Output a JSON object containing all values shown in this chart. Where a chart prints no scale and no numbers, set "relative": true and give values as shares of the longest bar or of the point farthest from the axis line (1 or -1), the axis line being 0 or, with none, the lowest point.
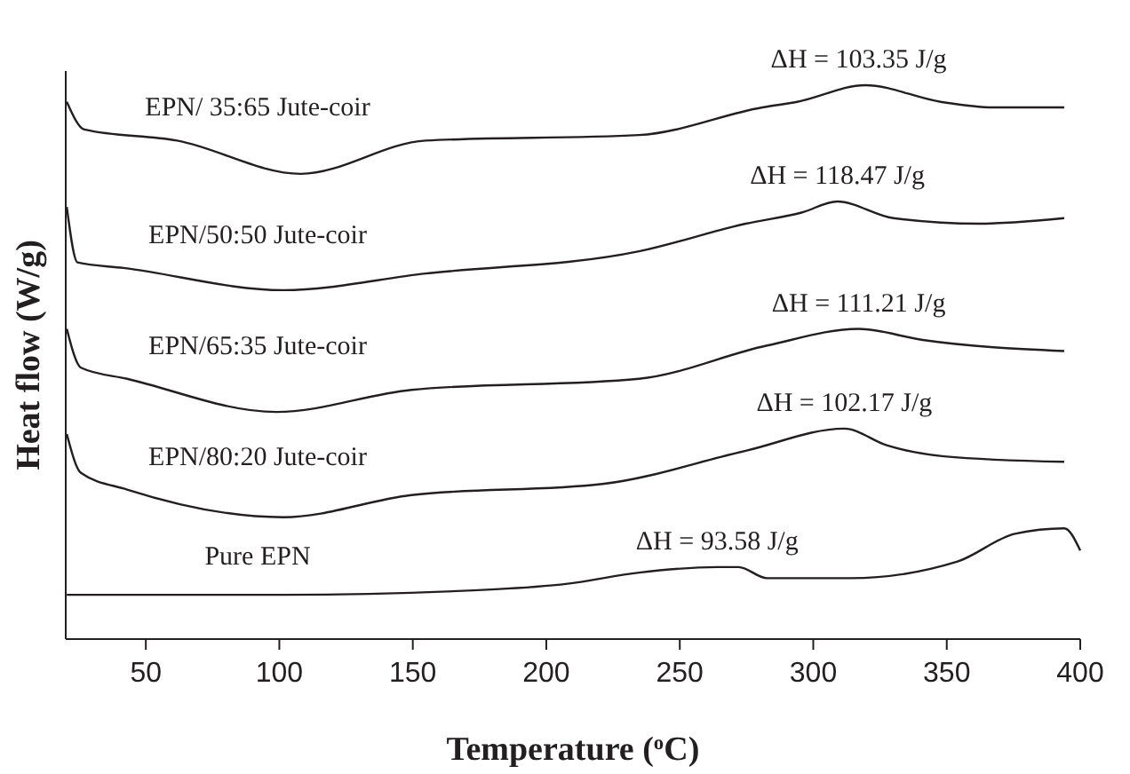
{
  "chart_data": {
    "type": "line",
    "xlabel": "Temperature ($^{o}$C)",
    "ylabel": "Heat flow (W/g)",
    "relative": true,
    "xlim": [
      20,
      400
    ],
    "xticks": [
      50,
      100,
      150,
      200,
      250,
      300,
      350,
      400
    ],
    "series": [
      {
        "name": "EPN/ 35:65 Jute-coir",
        "color": "#231f20",
        "x": [
          20.4,
          27,
          61.7,
          108,
          154.8,
          234.7,
          281,
          294,
          319.5,
          347.7,
          367.5,
          394
        ],
        "values": [
          0.97,
          0.92,
          0.9,
          0.84,
          0.9,
          0.91,
          0.96,
          0.97,
          1,
          0.97,
          0.96,
          0.96
        ]
      },
      {
        "name": "EPN/50:50 Jute-coir",
        "color": "#231f20",
        "x": [
          20.4,
          24.4,
          41.7,
          101.5,
          154.8,
          234.7,
          274.7,
          295.6,
          309,
          330,
          362,
          394
        ],
        "values": [
          0.78,
          0.68,
          0.67,
          0.63,
          0.66,
          0.7,
          0.75,
          0.77,
          0.79,
          0.76,
          0.75,
          0.76
        ]
      },
      {
        "name": "EPN/65:35 Jute-coir",
        "color": "#231f20",
        "x": [
          20.4,
          25.7,
          43,
          98.9,
          149.5,
          234.7,
          282.7,
          317,
          341,
          394
        ],
        "values": [
          0.56,
          0.49,
          0.47,
          0.41,
          0.45,
          0.47,
          0.53,
          0.56,
          0.54,
          0.52
        ]
      },
      {
        "name": "EPN/80:20 Jute-coir",
        "color": "#231f20",
        "x": [
          20.4,
          25.7,
          43,
          101.5,
          149.5,
          221,
          274.7,
          311.6,
          327.5,
          349,
          394
        ],
        "values": [
          0.37,
          0.3,
          0.27,
          0.22,
          0.26,
          0.28,
          0.34,
          0.38,
          0.35,
          0.33,
          0.32
        ]
      },
      {
        "name": "Pure EPN",
        "color": "#231f20",
        "x": [
          20.4,
          101.5,
          181,
          208,
          234.7,
          264,
          272,
          282.7,
          314,
          354,
          375.5,
          394,
          400
        ],
        "values": [
          0.08,
          0.08,
          0.09,
          0.1,
          0.12,
          0.13,
          0.13,
          0.11,
          0.11,
          0.14,
          0.19,
          0.2,
          0.16
        ]
      }
    ],
    "annotations": [
      {
        "text": "ΔH = 103.35 J/g",
        "x": 317,
        "y": 1
      },
      {
        "text": "ΔH = 118.47 J/g",
        "x": 309,
        "y": 0.79
      },
      {
        "text": "ΔH = 111.21 J/g",
        "x": 317,
        "y": 0.56
      },
      {
        "text": "ΔH = 102.17 J/g",
        "x": 311.6,
        "y": 0.38
      },
      {
        "text": "ΔH = 93.58 J/g",
        "x": 264,
        "y": 0.13
      }
    ]
  }
}
